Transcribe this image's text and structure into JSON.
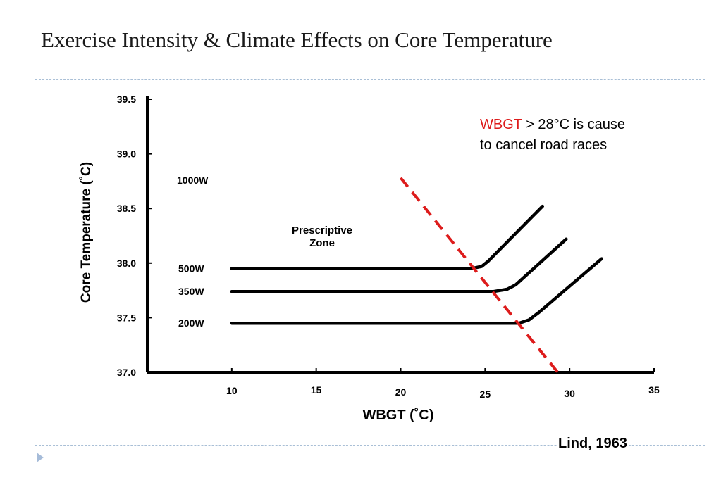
{
  "title": "Exercise Intensity & Climate Effects on Core Temperature",
  "citation": "Lind, 1963",
  "chart_data": {
    "type": "line",
    "title": "",
    "xlabel": "WBGT (˚C)",
    "ylabel": "Core Temperature (˚C)",
    "xlim": [
      5,
      35
    ],
    "ylim": [
      37.0,
      39.5
    ],
    "x_ticks": [
      "10",
      "15",
      "20",
      "25",
      "30",
      "35"
    ],
    "y_ticks": [
      "37.0",
      "37.5",
      "38.0",
      "38.5",
      "39.0",
      "39.5"
    ],
    "grid": false,
    "series": [
      {
        "name": "500W",
        "points": [
          [
            10,
            37.95
          ],
          [
            24.2,
            37.95
          ],
          [
            24.8,
            37.97
          ],
          [
            25.2,
            38.02
          ],
          [
            28.4,
            38.52
          ]
        ]
      },
      {
        "name": "350W",
        "points": [
          [
            10,
            37.74
          ],
          [
            25.5,
            37.74
          ],
          [
            26.3,
            37.76
          ],
          [
            26.8,
            37.8
          ],
          [
            29.8,
            38.22
          ]
        ]
      },
      {
        "name": "200W",
        "points": [
          [
            10,
            37.45
          ],
          [
            27.0,
            37.45
          ],
          [
            27.6,
            37.48
          ],
          [
            28.2,
            37.55
          ],
          [
            31.9,
            38.04
          ]
        ]
      }
    ],
    "extra_labels": [
      {
        "text": "1000W"
      },
      {
        "text": "Prescriptive\nZone"
      }
    ],
    "threshold_line": {
      "points": [
        [
          20.0,
          38.78
        ],
        [
          29.3,
          37.0
        ]
      ],
      "color": "#dd1c1c",
      "style": "dashed"
    },
    "annotation": {
      "highlight": "WBGT",
      "highlight_color": "#dd1c1c",
      "rest_line1": " > 28°C is cause",
      "line2": "to cancel road races"
    }
  }
}
